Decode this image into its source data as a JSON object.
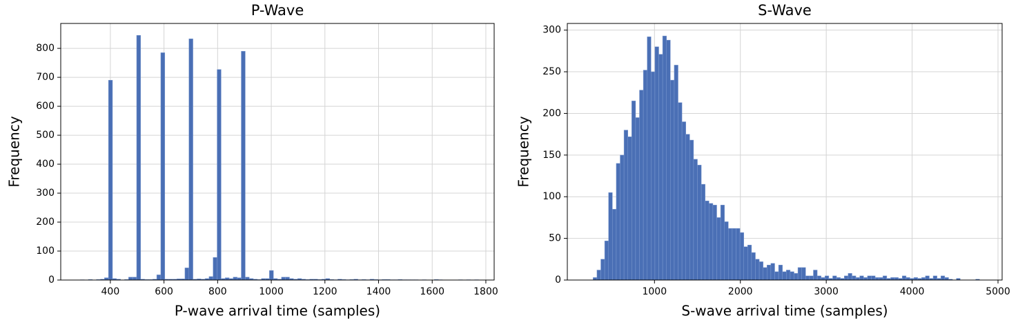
{
  "chart_data": [
    {
      "type": "histogram",
      "title": "P-Wave",
      "x_label": "P-wave arrival time (samples)",
      "y_label": "Frequency",
      "color": "#4a6fb5",
      "grid": true,
      "bins": [
        288,
        303,
        318,
        333,
        348,
        363,
        378,
        393,
        408,
        423,
        438,
        453,
        468,
        483,
        498,
        513,
        528,
        543,
        558,
        573,
        588,
        603,
        618,
        633,
        648,
        663,
        678,
        693,
        708,
        723,
        738,
        753,
        768,
        783,
        798,
        813,
        828,
        843,
        858,
        873,
        888,
        903,
        918,
        933,
        948,
        963,
        978,
        993,
        1008,
        1023,
        1038,
        1053,
        1068,
        1083,
        1098,
        1113,
        1128,
        1143,
        1158,
        1173,
        1188,
        1203,
        1218,
        1233,
        1248,
        1263,
        1278,
        1293,
        1308,
        1323,
        1338,
        1353,
        1368,
        1383,
        1398,
        1413,
        1428,
        1443,
        1458,
        1473,
        1488,
        1503,
        1518,
        1533,
        1548,
        1563,
        1578,
        1593,
        1608,
        1623,
        1638,
        1653,
        1668,
        1683,
        1698,
        1713,
        1728,
        1743,
        1758,
        1773
      ],
      "counts": [
        1,
        0,
        2,
        0,
        2,
        3,
        8,
        690,
        5,
        3,
        0,
        2,
        10,
        10,
        845,
        3,
        2,
        2,
        3,
        18,
        785,
        3,
        3,
        3,
        4,
        4,
        42,
        833,
        3,
        4,
        3,
        5,
        12,
        78,
        727,
        5,
        8,
        5,
        10,
        8,
        790,
        10,
        5,
        3,
        2,
        5,
        5,
        33,
        5,
        3,
        10,
        10,
        5,
        3,
        5,
        3,
        2,
        3,
        3,
        2,
        3,
        5,
        2,
        1,
        3,
        2,
        1,
        2,
        3,
        1,
        2,
        1,
        3,
        2,
        1,
        2,
        2,
        1,
        1,
        2,
        1,
        1,
        1,
        1,
        0,
        1,
        0,
        0,
        2,
        1,
        0,
        0,
        0,
        0,
        1,
        0,
        1,
        0,
        1
      ],
      "xlim": [
        215,
        1831
      ],
      "xticks": [
        400,
        600,
        800,
        1000,
        1200,
        1400,
        1600,
        1800
      ],
      "ylim": [
        0,
        886
      ],
      "yticks": [
        0,
        100,
        200,
        300,
        400,
        500,
        600,
        700,
        800
      ]
    },
    {
      "type": "histogram",
      "title": "S-Wave",
      "x_label": "S-wave arrival time (samples)",
      "y_label": "Frequency",
      "color": "#4a6fb5",
      "grid": true,
      "bins": [
        285,
        330,
        375,
        420,
        465,
        510,
        555,
        600,
        645,
        690,
        735,
        780,
        825,
        870,
        915,
        960,
        1005,
        1050,
        1095,
        1140,
        1185,
        1230,
        1275,
        1320,
        1365,
        1410,
        1455,
        1500,
        1545,
        1590,
        1635,
        1680,
        1725,
        1770,
        1815,
        1860,
        1905,
        1950,
        1995,
        2040,
        2085,
        2130,
        2175,
        2220,
        2265,
        2310,
        2355,
        2400,
        2445,
        2490,
        2535,
        2580,
        2625,
        2670,
        2715,
        2760,
        2805,
        2850,
        2895,
        2940,
        2985,
        3030,
        3075,
        3120,
        3165,
        3210,
        3255,
        3300,
        3345,
        3390,
        3435,
        3480,
        3525,
        3570,
        3615,
        3660,
        3705,
        3750,
        3795,
        3840,
        3885,
        3930,
        3975,
        4020,
        4065,
        4110,
        4155,
        4200,
        4245,
        4290,
        4335,
        4380,
        4425,
        4470,
        4515,
        4560,
        4605,
        4650,
        4695,
        4740,
        4785
      ],
      "counts": [
        3,
        12,
        25,
        47,
        105,
        85,
        140,
        150,
        180,
        172,
        215,
        195,
        228,
        252,
        292,
        250,
        280,
        271,
        293,
        288,
        240,
        258,
        213,
        190,
        175,
        168,
        145,
        138,
        115,
        95,
        92,
        90,
        75,
        90,
        70,
        62,
        62,
        62,
        57,
        40,
        42,
        33,
        25,
        22,
        15,
        18,
        20,
        10,
        18,
        10,
        12,
        10,
        8,
        15,
        15,
        5,
        5,
        12,
        5,
        3,
        5,
        2,
        5,
        3,
        2,
        5,
        8,
        5,
        3,
        5,
        3,
        5,
        5,
        3,
        3,
        5,
        2,
        3,
        3,
        2,
        5,
        3,
        2,
        3,
        2,
        3,
        5,
        2,
        5,
        2,
        5,
        3,
        1,
        0,
        2,
        0,
        0,
        0,
        0,
        1
      ],
      "xlim": [
        -15,
        5048
      ],
      "xticks": [
        1000,
        2000,
        3000,
        4000,
        5000
      ],
      "ylim": [
        0,
        308
      ],
      "yticks": [
        0,
        50,
        100,
        150,
        200,
        250,
        300
      ]
    }
  ]
}
